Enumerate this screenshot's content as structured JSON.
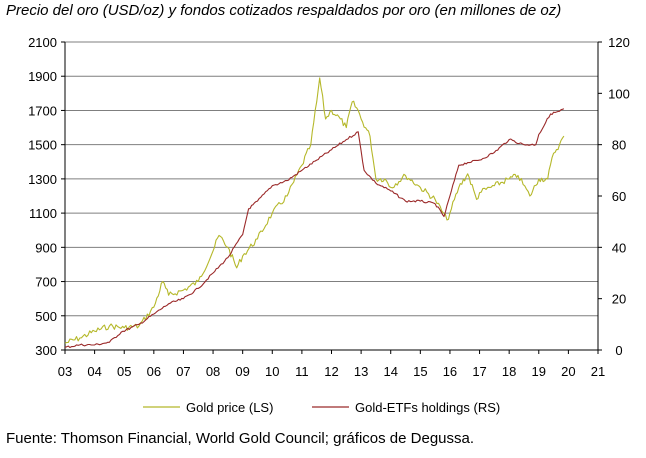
{
  "chart_data": {
    "type": "line",
    "title": "Precio del oro (USD/oz) y fondos cotizados respaldados por oro (en millones de oz)",
    "source": "Fuente: Thomson Financial, World Gold Council; gráficos de Degussa.",
    "x_tick_labels": [
      "03",
      "04",
      "05",
      "06",
      "07",
      "08",
      "09",
      "10",
      "11",
      "12",
      "13",
      "14",
      "15",
      "16",
      "17",
      "18",
      "19",
      "20",
      "21"
    ],
    "xlim": [
      2003,
      2021
    ],
    "y_left": {
      "ylim": [
        300,
        2100
      ],
      "ticks": [
        300,
        500,
        700,
        900,
        1100,
        1300,
        1500,
        1700,
        1900,
        2100
      ]
    },
    "y_right": {
      "ylim": [
        0,
        120
      ],
      "ticks": [
        0,
        20,
        40,
        60,
        80,
        100,
        120
      ]
    },
    "grid": true,
    "legend_position": "bottom",
    "series": [
      {
        "name": "Gold price (LS)",
        "axis": "left",
        "color": "#b5b82a",
        "x": [
          2003.0,
          2003.5,
          2004.0,
          2004.5,
          2005.0,
          2005.5,
          2006.0,
          2006.3,
          2006.5,
          2007.0,
          2007.5,
          2008.0,
          2008.2,
          2008.5,
          2008.8,
          2009.0,
          2009.5,
          2010.0,
          2010.5,
          2011.0,
          2011.3,
          2011.5,
          2011.6,
          2011.8,
          2012.0,
          2012.3,
          2012.5,
          2012.7,
          2012.9,
          2013.0,
          2013.3,
          2013.5,
          2013.8,
          2014.0,
          2014.5,
          2015.0,
          2015.5,
          2015.9,
          2016.0,
          2016.3,
          2016.6,
          2016.9,
          2017.0,
          2017.5,
          2018.0,
          2018.3,
          2018.7,
          2019.0,
          2019.3,
          2019.5,
          2019.7,
          2019.85
        ],
        "values": [
          340,
          370,
          410,
          440,
          430,
          440,
          550,
          700,
          620,
          650,
          700,
          880,
          970,
          900,
          780,
          850,
          950,
          1100,
          1200,
          1380,
          1500,
          1750,
          1890,
          1650,
          1700,
          1650,
          1600,
          1750,
          1700,
          1650,
          1550,
          1300,
          1300,
          1250,
          1320,
          1250,
          1180,
          1060,
          1100,
          1250,
          1330,
          1180,
          1220,
          1260,
          1300,
          1320,
          1200,
          1300,
          1300,
          1450,
          1500,
          1550
        ]
      },
      {
        "name": "Gold-ETFs holdings (RS)",
        "axis": "right",
        "color": "#9b2a2a",
        "x": [
          2003.0,
          2003.5,
          2004.0,
          2004.5,
          2004.9,
          2005.5,
          2006.0,
          2006.5,
          2007.0,
          2007.5,
          2008.0,
          2008.5,
          2009.0,
          2009.2,
          2009.5,
          2010.0,
          2010.5,
          2011.0,
          2011.5,
          2012.0,
          2012.5,
          2012.9,
          2013.1,
          2013.5,
          2014.0,
          2014.5,
          2015.0,
          2015.5,
          2015.8,
          2016.0,
          2016.3,
          2016.6,
          2017.0,
          2017.5,
          2018.0,
          2018.5,
          2018.9,
          2019.0,
          2019.4,
          2019.7,
          2019.85
        ],
        "values": [
          1,
          2,
          2,
          3,
          7,
          10,
          14,
          18,
          20,
          24,
          30,
          36,
          45,
          55,
          58,
          64,
          66,
          70,
          74,
          78,
          82,
          85,
          70,
          65,
          62,
          58,
          58,
          57,
          52,
          60,
          72,
          73,
          74,
          77,
          82,
          80,
          80,
          84,
          92,
          93,
          94
        ]
      }
    ]
  }
}
